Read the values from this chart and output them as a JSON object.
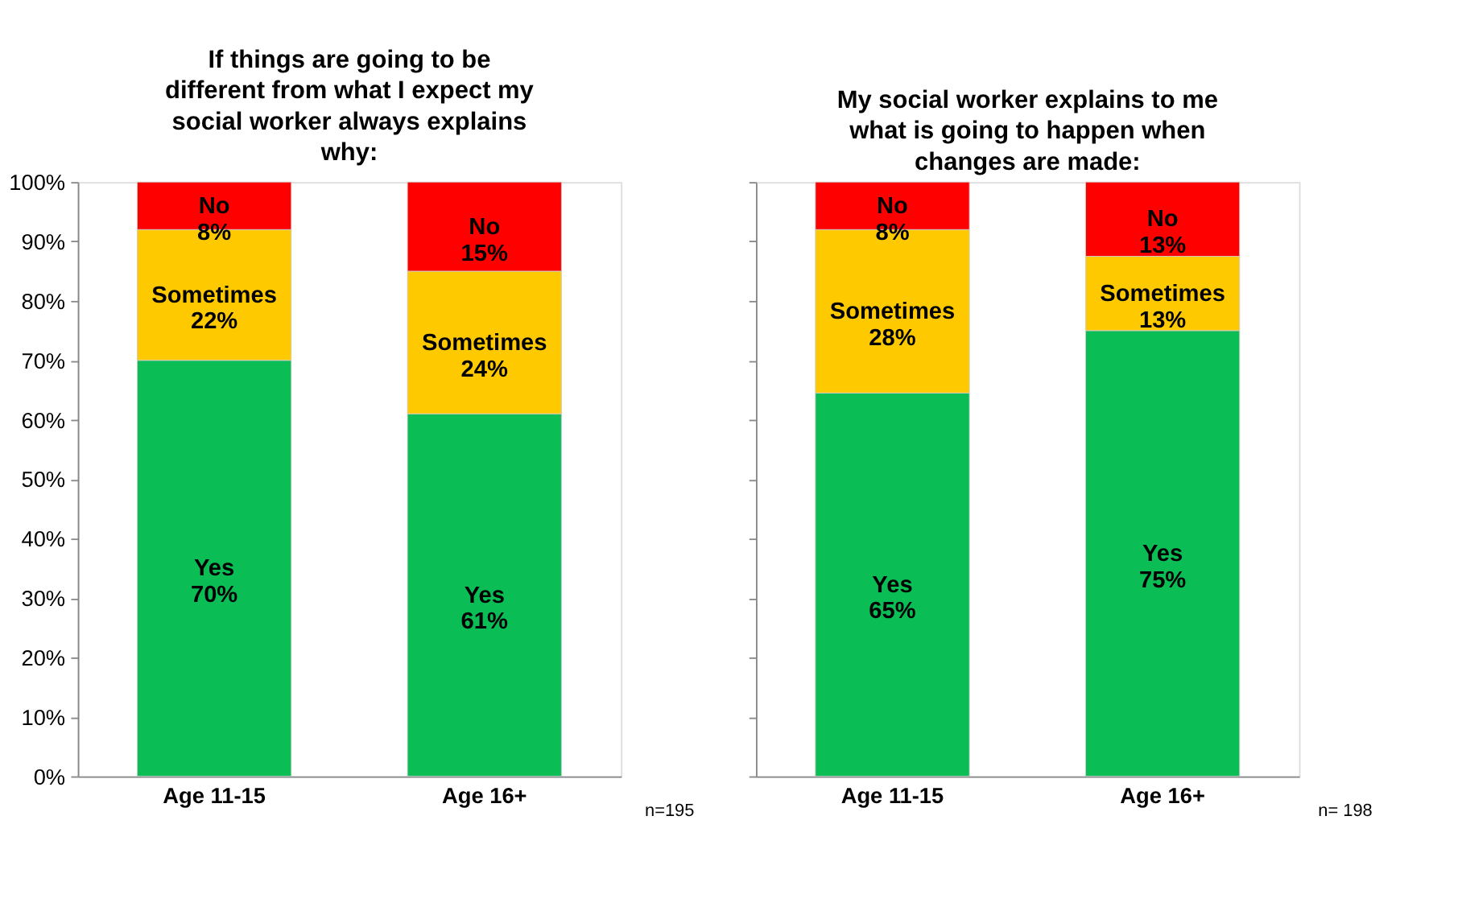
{
  "chart_data": [
    {
      "type": "bar",
      "stacked": true,
      "title": "If things are going to be different from what I expect my social worker always explains why:",
      "categories": [
        "Age 11-15",
        "Age 16+"
      ],
      "series": [
        {
          "name": "Yes",
          "color": "#0bbd55",
          "values": [
            70,
            61
          ],
          "value_labels": [
            "70%",
            "61%"
          ]
        },
        {
          "name": "Sometimes",
          "color": "#ffc900",
          "values": [
            22,
            24
          ],
          "value_labels": [
            "22%",
            "24%"
          ]
        },
        {
          "name": "No",
          "color": "#ff0000",
          "values": [
            8,
            15
          ],
          "value_labels": [
            "8%",
            "15%"
          ]
        }
      ],
      "ylim": [
        0,
        100
      ],
      "yticks": [
        {
          "value": 0,
          "label": "0%"
        },
        {
          "value": 10,
          "label": "10%"
        },
        {
          "value": 20,
          "label": "20%"
        },
        {
          "value": 30,
          "label": "30%"
        },
        {
          "value": 40,
          "label": "40%"
        },
        {
          "value": 50,
          "label": "50%"
        },
        {
          "value": 60,
          "label": "60%"
        },
        {
          "value": 70,
          "label": "70%"
        },
        {
          "value": 80,
          "label": "80%"
        },
        {
          "value": 90,
          "label": "90%"
        },
        {
          "value": 100,
          "label": "100%"
        }
      ],
      "grid": false,
      "annotations": [
        "n=195"
      ]
    },
    {
      "type": "bar",
      "stacked": true,
      "title": "My social worker explains to me what is going to happen when changes are made:",
      "categories": [
        "Age 11-15",
        "Age 16+"
      ],
      "series": [
        {
          "name": "Yes",
          "color": "#0bbd55",
          "values": [
            64.5,
            75
          ],
          "value_labels": [
            "65%",
            "75%"
          ]
        },
        {
          "name": "Sometimes",
          "color": "#ffc900",
          "values": [
            27.5,
            12.5
          ],
          "value_labels": [
            "28%",
            "13%"
          ]
        },
        {
          "name": "No",
          "color": "#ff0000",
          "values": [
            8,
            12.5
          ],
          "value_labels": [
            "8%",
            "13%"
          ]
        }
      ],
      "ylim": [
        0,
        100
      ],
      "yticks": [
        0,
        10,
        20,
        30,
        40,
        50,
        60,
        70,
        80,
        90,
        100
      ],
      "grid": false,
      "tick_labels": "x",
      "annotations": [
        "n= 198"
      ]
    }
  ]
}
